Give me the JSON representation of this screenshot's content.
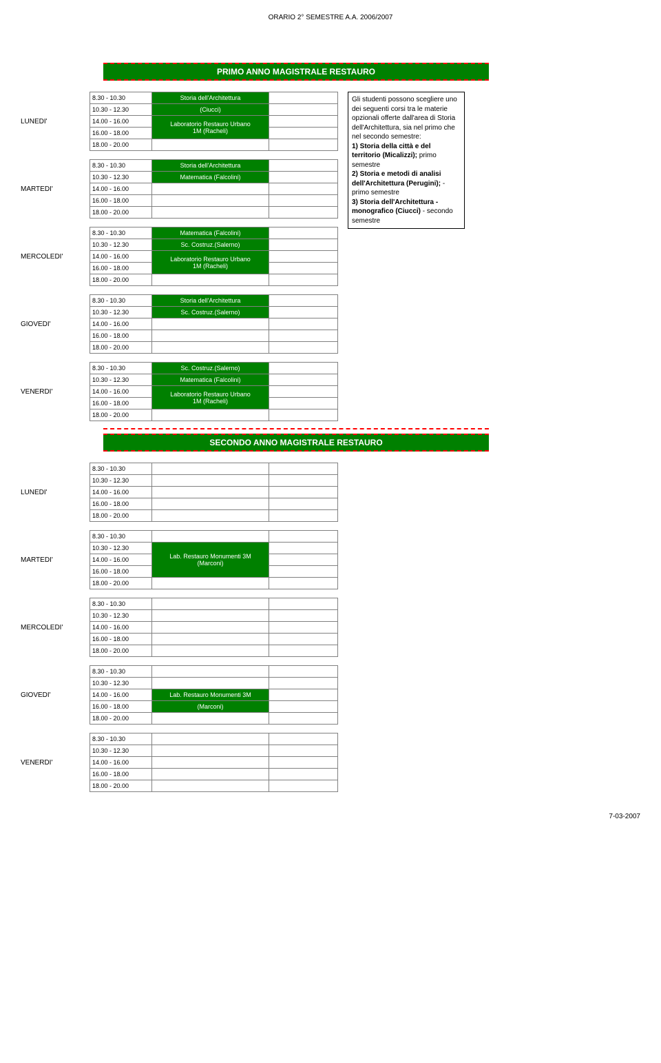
{
  "page_title": "ORARIO 2° SEMESTRE A.A. 2006/2007",
  "footer_date": "7-03-2007",
  "colors": {
    "green_bg": "#008000",
    "green_text": "#ffffff",
    "dashed_border": "#ff0000",
    "cell_border": "#808080",
    "black": "#000000"
  },
  "section_primo_title": "PRIMO ANNO MAGISTRALE RESTAURO",
  "section_secondo_title": "SECONDO ANNO MAGISTRALE RESTAURO",
  "times": [
    "8.30 - 10.30",
    "10.30 - 12.30",
    "14.00 - 16.00",
    "16.00 - 18.00",
    "18.00 - 20.00"
  ],
  "days": {
    "mon": "LUNEDI'",
    "tue": "MARTEDI'",
    "wed": "MERCOLEDI'",
    "thu": "GIOVEDI'",
    "fri": "VENERDI'"
  },
  "courses": {
    "storia_arch": "Storia dell'Architettura",
    "ciucci": "(Ciucci)",
    "lab_rest_1m_l1": "Laboratorio Restauro Urbano",
    "lab_rest_1m_l2": "1M (Racheli)",
    "matematica": "Matematica (Falcolini)",
    "sc_costruz": "Sc. Costruz.(Salerno)",
    "lab_3m_l1": "Lab. Restauro Monumenti 3M",
    "lab_3m_l2": "(Marconi)"
  },
  "note": {
    "p1": "Gli studenti possono scegliere uno dei seguenti corsi tra le materie opzionali offerte dall'area di Storia dell'Architettura, sia nel primo che nel secondo semestre:",
    "p2a": "1) Storia della città e del territorio (Micalizzi);",
    "p2b": "primo semestre",
    "p3a": "2)  Storia e metodi di analisi dell'Architettura (Perugini);",
    "p3b": "- primo semestre",
    "p4a": "3) Storia dell'Architettura - monografico (Ciucci)",
    "p4b": "- secondo semestre"
  }
}
